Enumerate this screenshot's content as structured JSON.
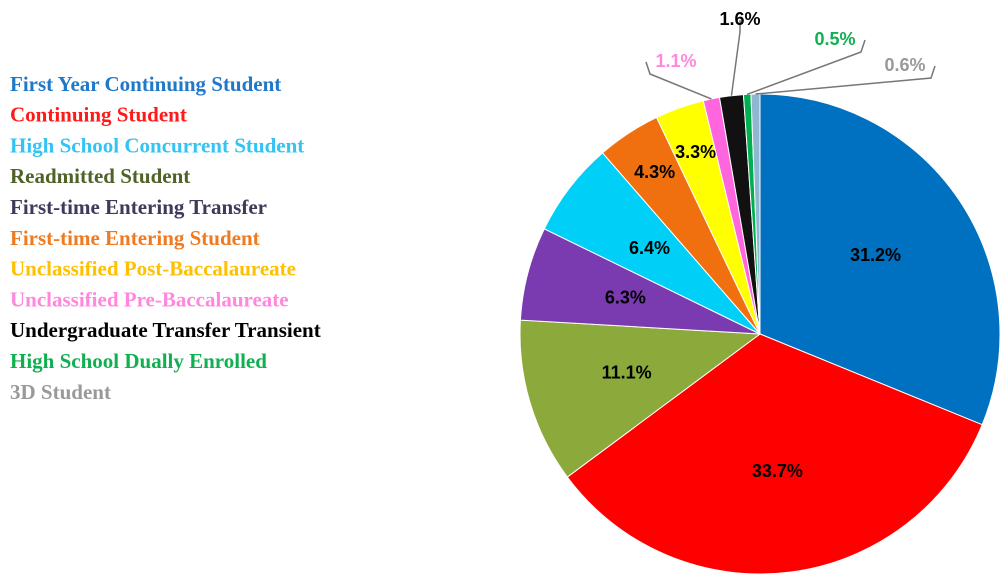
{
  "chart_data": {
    "type": "pie",
    "categories": [
      "First Year Continuing Student",
      "Continuing Student",
      "High School Concurrent Student",
      "Readmitted Student",
      "First-time Entering Transfer",
      "First-time Entering Student",
      "Unclassified Post-Baccalaureate",
      "Unclassified Pre-Baccalaureate",
      "Undergraduate Transfer Transient",
      "High School Dually Enrolled",
      "3D Student"
    ],
    "values": [
      31.2,
      33.7,
      6.4,
      11.1,
      6.3,
      4.3,
      3.3,
      1.1,
      1.6,
      0.5,
      0.6
    ],
    "value_labels": [
      "31.2%",
      "33.7%",
      "6.4%",
      "11.1%",
      "6.3%",
      "4.3%",
      "3.3%",
      "1.1%",
      "1.6%",
      "0.5%",
      "0.6%"
    ],
    "colors": [
      "#0070c0",
      "#ff0000",
      "#00d0f8",
      "#8caa3c",
      "#7a3ab0",
      "#f07010",
      "#ffff00",
      "#ff66dd",
      "#111111",
      "#00b050",
      "#8fb8d0"
    ],
    "label_colors": [
      "#1f78c8",
      "#ff1a1a",
      "#33c4f4",
      "#4f6228",
      "#403a5a",
      "#f07a20",
      "#ffc000",
      "#ff88dd",
      "#000000",
      "#10b050",
      "#999999"
    ],
    "legend": "left"
  }
}
